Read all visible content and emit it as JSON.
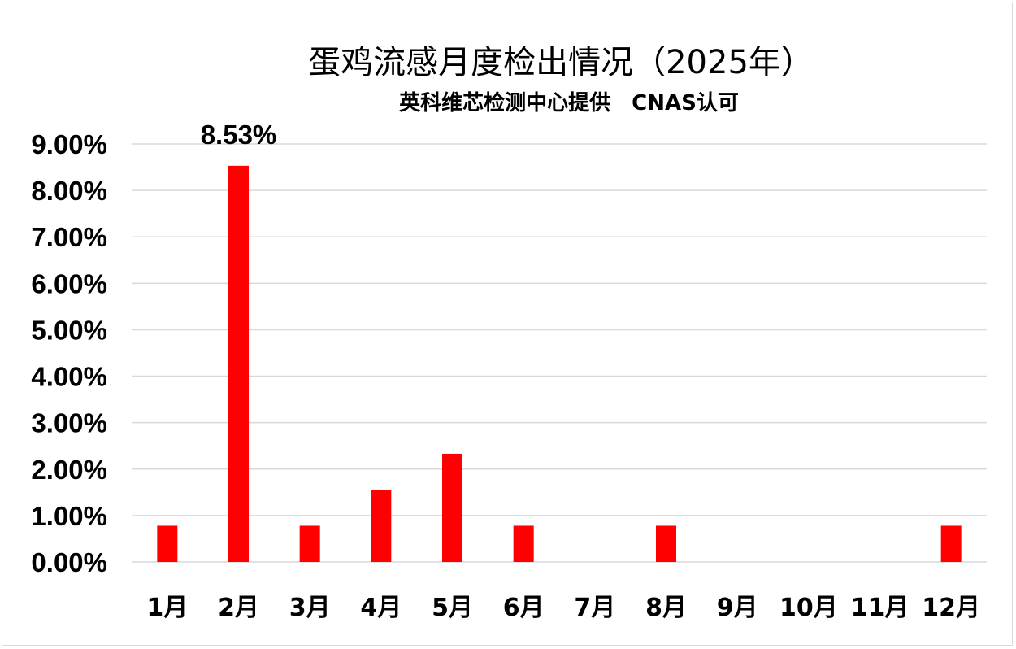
{
  "chart_data": {
    "type": "bar",
    "title": "蛋鸡流感月度检出情况（2025年）",
    "subtitle": "英科维芯检测中心提供　CNAS认可",
    "categories": [
      "1月",
      "2月",
      "3月",
      "4月",
      "5月",
      "6月",
      "7月",
      "8月",
      "9月",
      "10月",
      "11月",
      "12月"
    ],
    "values": [
      0.0078,
      0.0853,
      0.0078,
      0.0155,
      0.0233,
      0.0078,
      0,
      0.0078,
      0,
      0,
      0,
      0.0078
    ],
    "data_labels": [
      {
        "category": "2月",
        "text": "8.53%"
      }
    ],
    "ylim": [
      0,
      0.09
    ],
    "yticks": [
      "0.00%",
      "1.00%",
      "2.00%",
      "3.00%",
      "4.00%",
      "5.00%",
      "6.00%",
      "7.00%",
      "8.00%",
      "9.00%"
    ],
    "xlabel": "",
    "ylabel": "",
    "bar_color": "#ff0000",
    "grid": true,
    "legend": "none"
  }
}
